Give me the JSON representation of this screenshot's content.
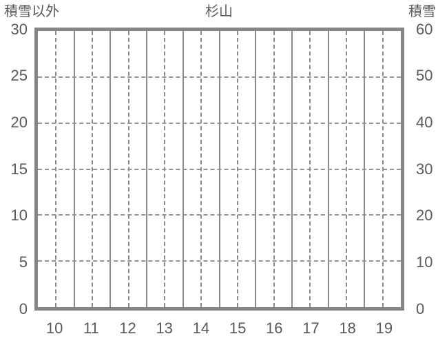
{
  "chart": {
    "title": "杉山",
    "left_axis_title": "積雪以外",
    "right_axis_title": "積雪"
  },
  "chart_data": {
    "type": "line",
    "title": "杉山",
    "categories": [
      "10",
      "11",
      "12",
      "13",
      "14",
      "15",
      "16",
      "17",
      "18",
      "19"
    ],
    "series": [],
    "left_axis": {
      "title": "積雪以外",
      "min": 0,
      "max": 30,
      "step": 5,
      "ticks_top_to_bottom": [
        "30",
        "25",
        "20",
        "15",
        "10",
        "5",
        "0"
      ]
    },
    "right_axis": {
      "title": "積雪",
      "min": 0,
      "max": 60,
      "step": 10,
      "ticks_top_to_bottom": [
        "60",
        "50",
        "40",
        "30",
        "20",
        "10",
        "0"
      ]
    },
    "grid": {
      "horizontal_dashed_lines_at_left_values": [
        25,
        20,
        15,
        10,
        5
      ],
      "vertical_solid_lines_at_category_boundaries": true,
      "vertical_dashed_lines_at_category_midpoints": true
    },
    "legend_position": "none"
  },
  "colors": {
    "background": "#ffffff",
    "text": "#595959",
    "plot_border": "#868686",
    "grid_solid": "#8a8a8a",
    "grid_dashed_vertical": "#8a8a8a",
    "grid_dashed_horizontal": "#949494"
  }
}
